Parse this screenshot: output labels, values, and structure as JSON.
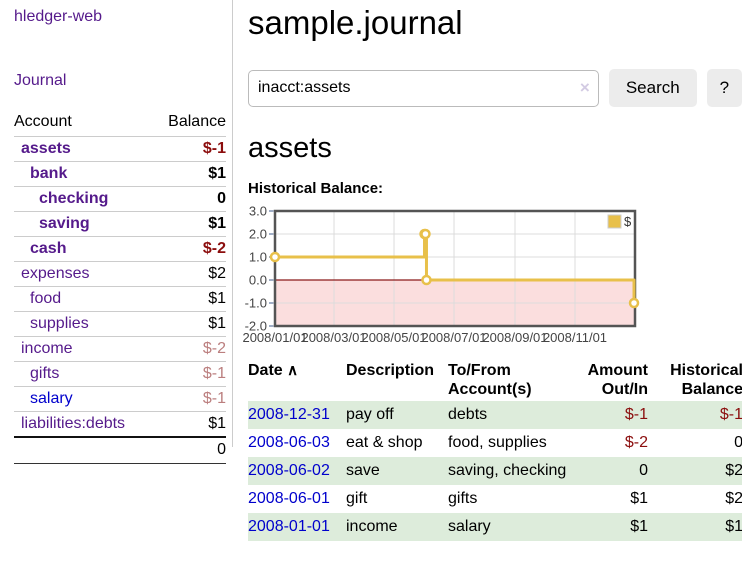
{
  "app": {
    "title": "hledger-web"
  },
  "sidebar": {
    "nav": {
      "journal_label": "Journal"
    },
    "accounts_table": {
      "headers": {
        "account": "Account",
        "balance": "Balance"
      },
      "rows": [
        {
          "name": "assets",
          "balance": "$-1",
          "depth": 1,
          "bold": true,
          "neg": "strong",
          "link": "purple"
        },
        {
          "name": "bank",
          "balance": "$1",
          "depth": 2,
          "bold": true,
          "neg": "none",
          "link": "purple"
        },
        {
          "name": "checking",
          "balance": "0",
          "depth": 3,
          "bold": true,
          "neg": "none",
          "link": "purple"
        },
        {
          "name": "saving",
          "balance": "$1",
          "depth": 3,
          "bold": true,
          "neg": "none",
          "link": "purple"
        },
        {
          "name": "cash",
          "balance": "$-2",
          "depth": 2,
          "bold": true,
          "neg": "strong",
          "link": "purple"
        },
        {
          "name": "expenses",
          "balance": "$2",
          "depth": 1,
          "bold": false,
          "neg": "none",
          "link": "purple"
        },
        {
          "name": "food",
          "balance": "$1",
          "depth": 2,
          "bold": false,
          "neg": "none",
          "link": "purple"
        },
        {
          "name": "supplies",
          "balance": "$1",
          "depth": 2,
          "bold": false,
          "neg": "none",
          "link": "purple"
        },
        {
          "name": "income",
          "balance": "$-2",
          "depth": 1,
          "bold": false,
          "neg": "faded",
          "link": "purple"
        },
        {
          "name": "gifts",
          "balance": "$-1",
          "depth": 2,
          "bold": false,
          "neg": "faded",
          "link": "purple"
        },
        {
          "name": "salary",
          "balance": "$-1",
          "depth": 2,
          "bold": false,
          "neg": "faded",
          "link": "blue"
        },
        {
          "name": "liabilities:debts",
          "balance": "$1",
          "depth": 1,
          "bold": false,
          "neg": "none",
          "link": "purple"
        }
      ],
      "total": "0"
    }
  },
  "header": {
    "title": "sample.journal"
  },
  "search": {
    "query": "inacct:assets",
    "clear_icon": "×",
    "button_label": "Search",
    "help_label": "?"
  },
  "account_page": {
    "heading": "assets",
    "chart_label": "Historical Balance:"
  },
  "chart_data": {
    "type": "line",
    "step": true,
    "title": "Historical Balance",
    "series": [
      {
        "name": "$",
        "color": "#e8c04a",
        "points": [
          {
            "date": "2008-01-01",
            "day": 0,
            "value": 1
          },
          {
            "date": "2008-06-01",
            "day": 152,
            "value": 2
          },
          {
            "date": "2008-06-02",
            "day": 153,
            "value": 2
          },
          {
            "date": "2008-06-03",
            "day": 154,
            "value": 0
          },
          {
            "date": "2008-12-31",
            "day": 365,
            "value": -1
          }
        ]
      }
    ],
    "x_ticks": [
      {
        "label": "2008/01/01",
        "day": 0
      },
      {
        "label": "2008/03/01",
        "day": 60
      },
      {
        "label": "2008/05/01",
        "day": 121
      },
      {
        "label": "2008/07/01",
        "day": 182
      },
      {
        "label": "2008/09/01",
        "day": 244
      },
      {
        "label": "2008/11/01",
        "day": 305
      }
    ],
    "y_ticks": [
      {
        "label": "3.0",
        "value": 3
      },
      {
        "label": "2.0",
        "value": 2
      },
      {
        "label": "1.0",
        "value": 1
      },
      {
        "label": "0.0",
        "value": 0
      },
      {
        "label": "-1.0",
        "value": -1
      },
      {
        "label": "-2.0",
        "value": -2
      }
    ],
    "xlim_days": [
      0,
      366
    ],
    "ylim": [
      -2,
      3
    ],
    "grid": true,
    "legend": {
      "label": "$",
      "position": "top-right"
    },
    "negative_region_fill": "#fbdede",
    "zero_line_color": "#8b1a1a",
    "grid_color": "#dcdcdc",
    "border_color": "#545454",
    "tick_text_color": "#444444"
  },
  "register_table": {
    "headers": {
      "date": "Date",
      "sort_icon": "∧",
      "description": "Description",
      "account_l1": "To/From",
      "account_l2": "Account(s)",
      "amount_l1": "Amount",
      "amount_l2": "Out/In",
      "balance_l1": "Historical",
      "balance_l2": "Balance"
    },
    "rows": [
      {
        "date": "2008-12-31",
        "description": "pay off",
        "accounts": "debts",
        "amount": "$-1",
        "balance": "$-1",
        "amount_neg": true,
        "balance_neg": true
      },
      {
        "date": "2008-06-03",
        "description": "eat & shop",
        "accounts": "food, supplies",
        "amount": "$-2",
        "balance": "0",
        "amount_neg": true,
        "balance_neg": false
      },
      {
        "date": "2008-06-02",
        "description": "save",
        "accounts": "saving, checking",
        "amount": "0",
        "balance": "$2",
        "amount_neg": false,
        "balance_neg": false
      },
      {
        "date": "2008-06-01",
        "description": "gift",
        "accounts": "gifts",
        "amount": "$1",
        "balance": "$2",
        "amount_neg": false,
        "balance_neg": false
      },
      {
        "date": "2008-01-01",
        "description": "income",
        "accounts": "salary",
        "amount": "$1",
        "balance": "$1",
        "amount_neg": false,
        "balance_neg": false
      }
    ]
  }
}
